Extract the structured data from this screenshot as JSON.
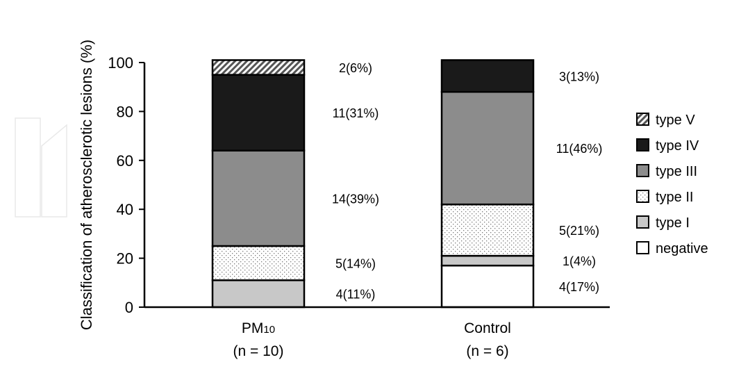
{
  "chart_data": {
    "type": "bar",
    "stacked": true,
    "ylabel": "Classification of atherosclerotic lesions (%)",
    "xlabel": "",
    "ylim": [
      0,
      100
    ],
    "yticks": [
      "0",
      "20",
      "40",
      "60",
      "80",
      "100"
    ],
    "categories": [
      {
        "main": "PM",
        "sub": "10",
        "n": "(n = 10)"
      },
      {
        "main": "Control",
        "sub": "",
        "n": "(n = 6)"
      }
    ],
    "series": [
      {
        "name": "negative",
        "key": "negative",
        "values": [
          0,
          17
        ]
      },
      {
        "name": "type I",
        "key": "typeI",
        "values": [
          11,
          4
        ]
      },
      {
        "name": "type II",
        "key": "typeII",
        "values": [
          14,
          21
        ]
      },
      {
        "name": "type III",
        "key": "typeIII",
        "values": [
          39,
          46
        ]
      },
      {
        "name": "type IV",
        "key": "typeIV",
        "values": [
          31,
          13
        ]
      },
      {
        "name": "type V",
        "key": "typeV",
        "values": [
          6,
          0
        ]
      }
    ],
    "data_labels": [
      [
        "",
        "4(17%)"
      ],
      [
        "4(11%)",
        "1(4%)"
      ],
      [
        "5(14%)",
        "5(21%)"
      ],
      [
        "14(39%)",
        "11(46%)"
      ],
      [
        "11(31%)",
        "3(13%)"
      ],
      [
        "2(6%)",
        ""
      ]
    ],
    "legend": {
      "position": "right",
      "order": [
        "typeV",
        "typeIV",
        "typeIII",
        "typeII",
        "typeI",
        "negative"
      ]
    },
    "colors": {
      "negative": "#ffffff",
      "typeI": "#c8c8c8",
      "typeII": "dots",
      "typeIII": "#8c8c8c",
      "typeIV": "#1a1a1a",
      "typeV": "hatch"
    },
    "grid": false
  }
}
